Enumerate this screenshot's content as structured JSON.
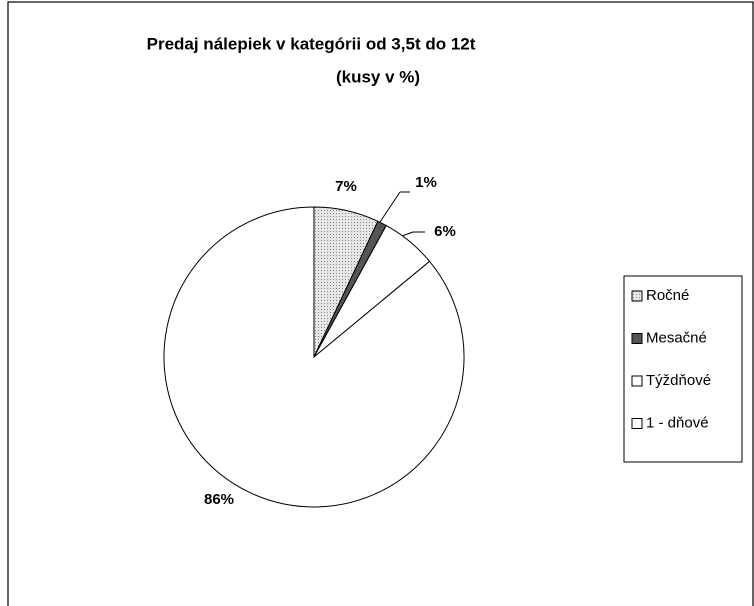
{
  "chart_data": {
    "type": "pie",
    "title": "Predaj nálepiek v kategórii od 3,5t do 12t",
    "subtitle": "(kusy v %)",
    "categories": [
      "Ročné",
      "Mesačné",
      "Týždňové",
      "1 - dňové"
    ],
    "values": [
      7,
      1,
      6,
      86
    ],
    "value_labels": [
      "7%",
      "1%",
      "6%",
      "86%"
    ],
    "colors": [
      "#d4d4d4",
      "#555555",
      "#ffffff",
      "#ffffff"
    ],
    "legend": "right"
  }
}
